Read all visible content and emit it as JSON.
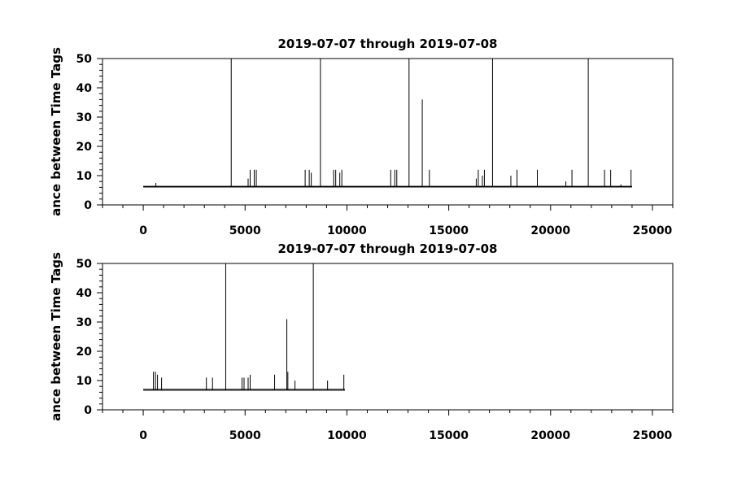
{
  "chart_data": [
    {
      "type": "line",
      "title": "2019-07-07 through 2019-07-08",
      "ylabel": "ance between Time Tags",
      "xlabel": "",
      "xlim": [
        -2000,
        26000
      ],
      "ylim": [
        0,
        50
      ],
      "x_ticks": [
        0,
        5000,
        10000,
        15000,
        20000,
        25000
      ],
      "y_ticks": [
        0,
        10,
        20,
        30,
        40,
        50
      ],
      "baseline": {
        "x_start": 0,
        "x_end": 24000,
        "value": 6.2
      },
      "spikes": [
        {
          "x": 620,
          "y": 7.5
        },
        {
          "x": 4320,
          "y": 50
        },
        {
          "x": 5150,
          "y": 9
        },
        {
          "x": 5250,
          "y": 12
        },
        {
          "x": 5450,
          "y": 12
        },
        {
          "x": 5550,
          "y": 12
        },
        {
          "x": 7950,
          "y": 12
        },
        {
          "x": 8150,
          "y": 12
        },
        {
          "x": 8250,
          "y": 11
        },
        {
          "x": 8700,
          "y": 50
        },
        {
          "x": 9350,
          "y": 12
        },
        {
          "x": 9450,
          "y": 12
        },
        {
          "x": 9650,
          "y": 11
        },
        {
          "x": 9750,
          "y": 12
        },
        {
          "x": 12150,
          "y": 12
        },
        {
          "x": 12350,
          "y": 12
        },
        {
          "x": 12450,
          "y": 12
        },
        {
          "x": 13050,
          "y": 50
        },
        {
          "x": 13700,
          "y": 36
        },
        {
          "x": 14050,
          "y": 12
        },
        {
          "x": 16350,
          "y": 9
        },
        {
          "x": 16450,
          "y": 12
        },
        {
          "x": 16650,
          "y": 10
        },
        {
          "x": 16750,
          "y": 12
        },
        {
          "x": 17150,
          "y": 50
        },
        {
          "x": 18050,
          "y": 10
        },
        {
          "x": 18350,
          "y": 12
        },
        {
          "x": 19350,
          "y": 12
        },
        {
          "x": 20750,
          "y": 8
        },
        {
          "x": 21050,
          "y": 12
        },
        {
          "x": 21850,
          "y": 50
        },
        {
          "x": 22650,
          "y": 12
        },
        {
          "x": 22950,
          "y": 12
        },
        {
          "x": 23450,
          "y": 7
        },
        {
          "x": 23950,
          "y": 12
        }
      ]
    },
    {
      "type": "line",
      "title": "2019-07-07 through 2019-07-08",
      "ylabel": "ance between Time Tags",
      "xlabel": "",
      "xlim": [
        -2000,
        26000
      ],
      "ylim": [
        0,
        50
      ],
      "x_ticks": [
        0,
        5000,
        10000,
        15000,
        20000,
        25000
      ],
      "y_ticks": [
        0,
        10,
        20,
        30,
        40,
        50
      ],
      "baseline": {
        "x_start": 0,
        "x_end": 9900,
        "value": 6.8
      },
      "spikes": [
        {
          "x": 500,
          "y": 13
        },
        {
          "x": 600,
          "y": 13
        },
        {
          "x": 700,
          "y": 12
        },
        {
          "x": 900,
          "y": 11
        },
        {
          "x": 3100,
          "y": 11
        },
        {
          "x": 3400,
          "y": 11
        },
        {
          "x": 4050,
          "y": 50
        },
        {
          "x": 4850,
          "y": 11
        },
        {
          "x": 4950,
          "y": 11
        },
        {
          "x": 5150,
          "y": 11
        },
        {
          "x": 5250,
          "y": 12
        },
        {
          "x": 6450,
          "y": 12
        },
        {
          "x": 7050,
          "y": 31
        },
        {
          "x": 7100,
          "y": 13
        },
        {
          "x": 7450,
          "y": 10
        },
        {
          "x": 8350,
          "y": 50
        },
        {
          "x": 9050,
          "y": 10
        },
        {
          "x": 9850,
          "y": 12
        }
      ]
    }
  ]
}
